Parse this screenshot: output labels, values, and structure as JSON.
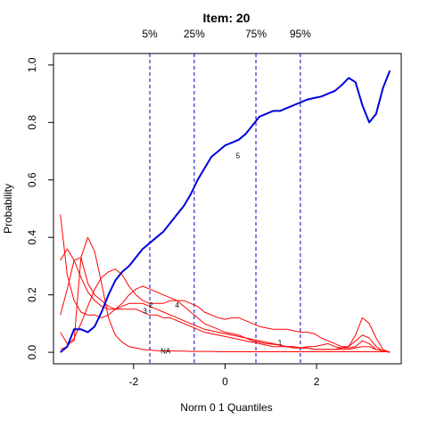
{
  "chart_data": {
    "type": "line",
    "title": "Item:  20",
    "xlabel": "Norm 0 1 Quantiles",
    "ylabel": "Probability",
    "xlim": [
      -3.75,
      3.85
    ],
    "ylim": [
      -0.04,
      1.04
    ],
    "xticks": [
      -2,
      0,
      2
    ],
    "yticks": [
      0.0,
      0.2,
      0.4,
      0.6,
      0.8,
      1.0
    ],
    "xtick_labels": [
      "-2",
      "0",
      "2"
    ],
    "ytick_labels": [
      "0.0",
      "0.2",
      "0.4",
      "0.6",
      "0.8",
      "1.0"
    ],
    "grid": false,
    "quantiles": [
      {
        "label": "5%",
        "x": -1.645
      },
      {
        "label": "25%",
        "x": -0.674
      },
      {
        "label": "75%",
        "x": 0.674
      },
      {
        "label": "95%",
        "x": 1.645
      }
    ],
    "quantile_color": "#0000cc",
    "series": [
      {
        "name": "5",
        "color": "#0000dd",
        "width": 2,
        "label": {
          "text": "5",
          "x": 0.28,
          "y": 0.685
        },
        "x": [
          -3.6,
          -3.45,
          -3.3,
          -3.15,
          -3.0,
          -2.85,
          -2.7,
          -2.55,
          -2.4,
          -2.25,
          -2.1,
          -1.95,
          -1.8,
          -1.65,
          -1.5,
          -1.35,
          -1.2,
          -1.05,
          -0.9,
          -0.75,
          -0.6,
          -0.45,
          -0.3,
          -0.15,
          0.0,
          0.15,
          0.3,
          0.45,
          0.6,
          0.75,
          0.9,
          1.05,
          1.2,
          1.35,
          1.5,
          1.65,
          1.8,
          1.95,
          2.1,
          2.25,
          2.4,
          2.55,
          2.7,
          2.85,
          3.0,
          3.15,
          3.3,
          3.45,
          3.6
        ],
        "y": [
          0.0,
          0.02,
          0.08,
          0.08,
          0.07,
          0.09,
          0.14,
          0.2,
          0.25,
          0.28,
          0.3,
          0.33,
          0.36,
          0.38,
          0.4,
          0.42,
          0.45,
          0.48,
          0.51,
          0.55,
          0.6,
          0.64,
          0.68,
          0.7,
          0.72,
          0.73,
          0.74,
          0.76,
          0.79,
          0.82,
          0.83,
          0.84,
          0.84,
          0.85,
          0.86,
          0.87,
          0.88,
          0.885,
          0.89,
          0.9,
          0.91,
          0.93,
          0.955,
          0.94,
          0.86,
          0.8,
          0.83,
          0.92,
          0.98
        ]
      },
      {
        "name": "1",
        "color": "#ff0000",
        "width": 1,
        "label": {
          "text": "1",
          "x": 1.2,
          "y": 0.035
        },
        "x": [
          -3.6,
          -3.45,
          -3.3,
          -3.15,
          -3.0,
          -2.85,
          -2.7,
          -2.55,
          -2.4,
          -2.25,
          -2.1,
          -1.95,
          -1.8,
          -1.65,
          -1.5,
          -1.35,
          -1.2,
          -1.05,
          -0.9,
          -0.75,
          -0.6,
          -0.45,
          -0.3,
          -0.15,
          0.0,
          0.15,
          0.3,
          0.45,
          0.6,
          0.75,
          0.9,
          1.05,
          1.2,
          1.35,
          1.5,
          1.65,
          1.8,
          1.95,
          2.1,
          2.25,
          2.4,
          2.55,
          2.7,
          2.85,
          3.0,
          3.15,
          3.3,
          3.45,
          3.6
        ],
        "y": [
          0.48,
          0.27,
          0.18,
          0.14,
          0.13,
          0.13,
          0.12,
          0.13,
          0.15,
          0.17,
          0.2,
          0.22,
          0.23,
          0.22,
          0.21,
          0.2,
          0.19,
          0.18,
          0.16,
          0.14,
          0.12,
          0.1,
          0.09,
          0.08,
          0.07,
          0.065,
          0.06,
          0.05,
          0.04,
          0.035,
          0.03,
          0.028,
          0.025,
          0.02,
          0.02,
          0.015,
          0.015,
          0.01,
          0.01,
          0.01,
          0.01,
          0.015,
          0.02,
          0.04,
          0.06,
          0.05,
          0.02,
          0.005,
          0.0
        ]
      },
      {
        "name": "2",
        "color": "#ff0000",
        "width": 1,
        "label": {
          "text": "2",
          "x": -1.62,
          "y": 0.165
        },
        "x": [
          -3.6,
          -3.45,
          -3.3,
          -3.15,
          -3.0,
          -2.85,
          -2.7,
          -2.55,
          -2.4,
          -2.25,
          -2.1,
          -1.95,
          -1.8,
          -1.65,
          -1.5,
          -1.35,
          -1.2,
          -1.05,
          -0.9,
          -0.75,
          -0.6,
          -0.45,
          -0.3,
          -0.15,
          0.0,
          0.15,
          0.3,
          0.45,
          0.6,
          0.75,
          0.9,
          1.05,
          1.2,
          1.35,
          1.5,
          1.65,
          1.8,
          1.95,
          2.1,
          2.25,
          2.4,
          2.55,
          2.7,
          2.85,
          3.0,
          3.15,
          3.3,
          3.45,
          3.6
        ],
        "y": [
          0.32,
          0.36,
          0.32,
          0.26,
          0.21,
          0.18,
          0.16,
          0.15,
          0.15,
          0.16,
          0.17,
          0.17,
          0.17,
          0.16,
          0.15,
          0.14,
          0.13,
          0.12,
          0.11,
          0.1,
          0.09,
          0.08,
          0.075,
          0.07,
          0.065,
          0.06,
          0.055,
          0.05,
          0.045,
          0.04,
          0.035,
          0.03,
          0.025,
          0.02,
          0.02,
          0.015,
          0.015,
          0.01,
          0.01,
          0.01,
          0.01,
          0.01,
          0.01,
          0.015,
          0.02,
          0.02,
          0.01,
          0.005,
          0.0
        ]
      },
      {
        "name": "3",
        "color": "#ff0000",
        "width": 1,
        "label": {
          "text": "3",
          "x": -1.75,
          "y": 0.145
        },
        "x": [
          -3.6,
          -3.45,
          -3.3,
          -3.15,
          -3.0,
          -2.85,
          -2.7,
          -2.55,
          -2.4,
          -2.25,
          -2.1,
          -1.95,
          -1.8,
          -1.65,
          -1.5,
          -1.35,
          -1.2,
          -1.05,
          -0.9,
          -0.75,
          -0.6,
          -0.45,
          -0.3,
          -0.15,
          0.0,
          0.15,
          0.3,
          0.45,
          0.6,
          0.75,
          0.9,
          1.05,
          1.2,
          1.35,
          1.5,
          1.65,
          1.8,
          1.95,
          2.1,
          2.25,
          2.4,
          2.55,
          2.7,
          2.85,
          3.0,
          3.15,
          3.3,
          3.45,
          3.6
        ],
        "y": [
          0.13,
          0.22,
          0.32,
          0.33,
          0.24,
          0.2,
          0.18,
          0.16,
          0.15,
          0.15,
          0.15,
          0.15,
          0.14,
          0.13,
          0.13,
          0.12,
          0.12,
          0.11,
          0.1,
          0.09,
          0.08,
          0.07,
          0.065,
          0.06,
          0.055,
          0.05,
          0.045,
          0.04,
          0.035,
          0.03,
          0.025,
          0.02,
          0.02,
          0.02,
          0.015,
          0.015,
          0.02,
          0.02,
          0.025,
          0.03,
          0.02,
          0.015,
          0.015,
          0.02,
          0.04,
          0.03,
          0.01,
          0.005,
          0.0
        ]
      },
      {
        "name": "4",
        "color": "#ff0000",
        "width": 1,
        "label": {
          "text": "4",
          "x": -1.05,
          "y": 0.165
        },
        "x": [
          -3.6,
          -3.45,
          -3.3,
          -3.15,
          -3.0,
          -2.85,
          -2.7,
          -2.55,
          -2.4,
          -2.25,
          -2.1,
          -1.95,
          -1.8,
          -1.65,
          -1.5,
          -1.35,
          -1.2,
          -1.05,
          -0.9,
          -0.75,
          -0.6,
          -0.45,
          -0.3,
          -0.15,
          0.0,
          0.15,
          0.3,
          0.45,
          0.6,
          0.75,
          0.9,
          1.05,
          1.2,
          1.35,
          1.5,
          1.65,
          1.8,
          1.95,
          2.1,
          2.25,
          2.4,
          2.55,
          2.7,
          2.85,
          3.0,
          3.15,
          3.3,
          3.45,
          3.6
        ],
        "y": [
          0.01,
          0.02,
          0.05,
          0.1,
          0.16,
          0.22,
          0.26,
          0.28,
          0.29,
          0.27,
          0.23,
          0.2,
          0.18,
          0.17,
          0.17,
          0.17,
          0.18,
          0.18,
          0.18,
          0.17,
          0.16,
          0.14,
          0.13,
          0.12,
          0.115,
          0.12,
          0.12,
          0.11,
          0.1,
          0.09,
          0.085,
          0.08,
          0.08,
          0.08,
          0.075,
          0.07,
          0.07,
          0.065,
          0.05,
          0.04,
          0.03,
          0.02,
          0.02,
          0.06,
          0.12,
          0.1,
          0.05,
          0.01,
          0.0
        ]
      },
      {
        "name": "NA",
        "color": "#ff0000",
        "width": 1,
        "label": {
          "text": "NA",
          "x": -1.3,
          "y": 0.005
        },
        "x": [
          -3.6,
          -3.45,
          -3.3,
          -3.15,
          -3.0,
          -2.85,
          -2.7,
          -2.55,
          -2.4,
          -2.25,
          -2.1,
          -1.95,
          -1.8,
          -1.65,
          -1.5,
          -1.35,
          -1.2,
          -1.05,
          -0.9,
          -0.75,
          -0.6,
          -0.45,
          -0.3,
          -0.15,
          0.0,
          0.15,
          0.3,
          0.45,
          0.6,
          0.75,
          0.9,
          1.05,
          1.2,
          1.35,
          1.5,
          1.65,
          1.8,
          1.95,
          2.1,
          2.25,
          2.4,
          2.55,
          2.7,
          2.85,
          3.0,
          3.15,
          3.3,
          3.45,
          3.6
        ],
        "y": [
          0.07,
          0.03,
          0.04,
          0.33,
          0.4,
          0.35,
          0.24,
          0.12,
          0.06,
          0.035,
          0.02,
          0.015,
          0.01,
          0.008,
          0.006,
          0.005,
          0.005,
          0.004,
          0.004,
          0.003,
          0.003,
          0.003,
          0.003,
          0.002,
          0.002,
          0.002,
          0.002,
          0.002,
          0.002,
          0.002,
          0.002,
          0.002,
          0.002,
          0.002,
          0.002,
          0.002,
          0.002,
          0.002,
          0.002,
          0.002,
          0.002,
          0.002,
          0.002,
          0.002,
          0.002,
          0.002,
          0.002,
          0.002,
          0.002
        ]
      }
    ]
  }
}
